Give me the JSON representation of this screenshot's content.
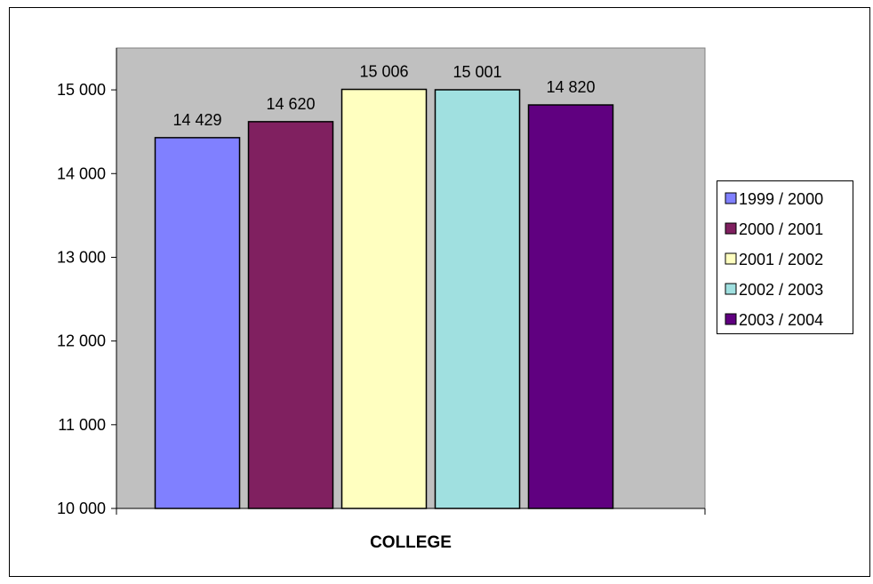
{
  "chart_data": {
    "type": "bar",
    "title": "",
    "xlabel": "COLLEGE",
    "ylabel": "",
    "ylim": [
      10000,
      15500
    ],
    "y_ticks": [
      10000,
      11000,
      12000,
      13000,
      14000,
      15000
    ],
    "y_tick_labels": [
      "10 000",
      "11 000",
      "12 000",
      "13 000",
      "14 000",
      "15 000"
    ],
    "categories": [
      "COLLEGE"
    ],
    "series": [
      {
        "name": "1999 / 2000",
        "values": [
          14429
        ],
        "label": "14 429",
        "color": "#8080ff"
      },
      {
        "name": "2000 / 2001",
        "values": [
          14620
        ],
        "label": "14 620",
        "color": "#802060"
      },
      {
        "name": "2001 / 2002",
        "values": [
          15006
        ],
        "label": "15 006",
        "color": "#ffffc0"
      },
      {
        "name": "2002 / 2003",
        "values": [
          15001
        ],
        "label": "15 001",
        "color": "#a0e0e0"
      },
      {
        "name": "2003 / 2004",
        "values": [
          14820
        ],
        "label": "14 820",
        "color": "#600080"
      }
    ],
    "plot_background": "#c0c0c0",
    "grid": false,
    "legend_position": "right"
  }
}
